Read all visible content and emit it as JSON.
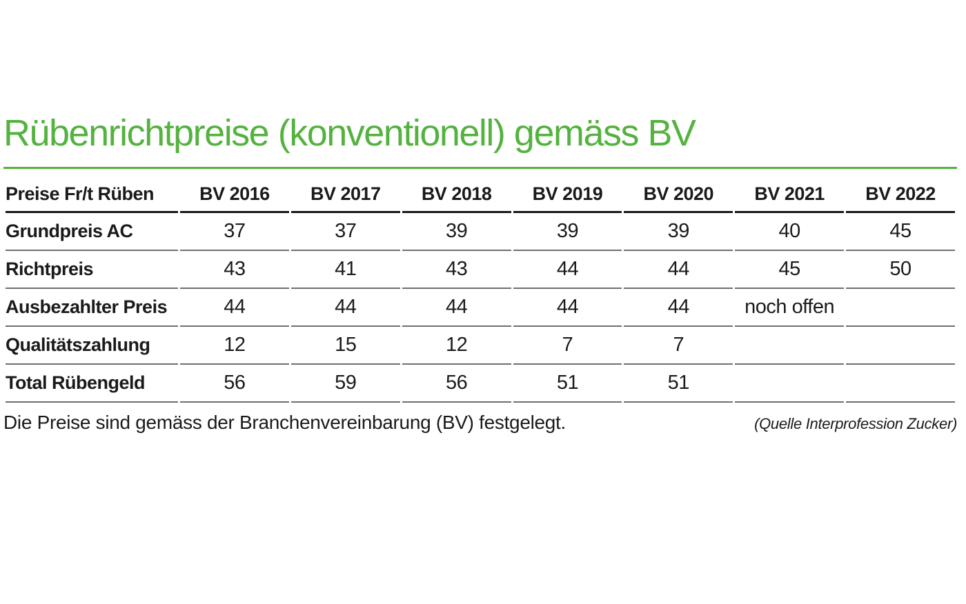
{
  "colors": {
    "accent_green": "#54b23f",
    "text": "#1a1a1a",
    "header_rule": "#161616",
    "row_rule": "#6e6e6e"
  },
  "chart_data": {
    "type": "table",
    "title": "Rübenrichtpreise (konventionell) gemäss BV",
    "columns": [
      "Preise Fr/t Rüben",
      "BV 2016",
      "BV 2017",
      "BV 2018",
      "BV 2019",
      "BV 2020",
      "BV 2021",
      "BV 2022"
    ],
    "rows": [
      {
        "label": "Grundpreis AC",
        "values": [
          "37",
          "37",
          "39",
          "39",
          "39",
          "40",
          "45"
        ]
      },
      {
        "label": "Richtpreis",
        "values": [
          "43",
          "41",
          "43",
          "44",
          "44",
          "45",
          "50"
        ]
      },
      {
        "label": "Ausbezahlter Preis",
        "values": [
          "44",
          "44",
          "44",
          "44",
          "44",
          "noch offen",
          ""
        ]
      },
      {
        "label": "Qualitätszahlung",
        "values": [
          "12",
          "15",
          "12",
          "7",
          "7",
          "",
          ""
        ]
      },
      {
        "label": "Total Rübengeld",
        "values": [
          "56",
          "59",
          "56",
          "51",
          "51",
          "",
          ""
        ]
      }
    ],
    "footnote": "Die Preise sind gemäss der Branchenvereinbarung (BV) festgelegt.",
    "source": "(Quelle Interprofession Zucker)"
  }
}
